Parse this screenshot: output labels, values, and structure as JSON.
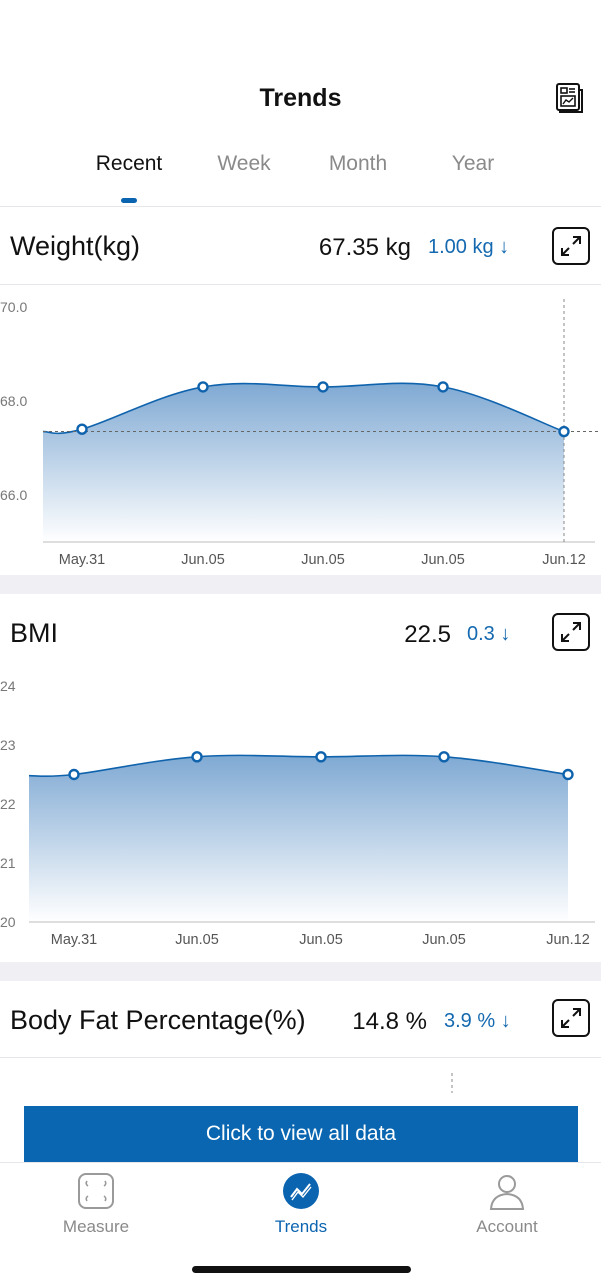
{
  "header": {
    "title": "Trends",
    "report_icon": "report-icon"
  },
  "tabs": [
    {
      "label": "Recent",
      "active": true
    },
    {
      "label": "Week",
      "active": false
    },
    {
      "label": "Month",
      "active": false
    },
    {
      "label": "Year",
      "active": false
    }
  ],
  "cards": {
    "weight": {
      "title": "Weight(kg)",
      "value": "67.35 kg",
      "delta": "1.00 kg ↓"
    },
    "bmi": {
      "title": "BMI",
      "value": "22.5",
      "delta": "0.3 ↓"
    },
    "body_fat": {
      "title": "Body Fat Percentage(%)",
      "value": "14.8 %",
      "delta": "3.9 % ↓"
    }
  },
  "chart_data": [
    {
      "type": "area",
      "name": "Weight(kg)",
      "categories": [
        "May.31",
        "Jun.05",
        "Jun.05",
        "Jun.05",
        "Jun.12"
      ],
      "values": [
        67.4,
        68.3,
        68.3,
        68.3,
        67.35
      ],
      "ylim": [
        65.0,
        70.0
      ],
      "yticks": [
        "70.0",
        "68.0",
        "66.0"
      ],
      "ytick_values": [
        70.0,
        68.0,
        66.0
      ],
      "reference_line": 67.35,
      "colors": {
        "line": "#0f63ad",
        "fill_top": "#7fa9d3",
        "fill_bottom": "#ffffff"
      }
    },
    {
      "type": "area",
      "name": "BMI",
      "categories": [
        "May.31",
        "Jun.05",
        "Jun.05",
        "Jun.05",
        "Jun.12"
      ],
      "values": [
        22.5,
        22.8,
        22.8,
        22.8,
        22.5
      ],
      "ylim": [
        20,
        24
      ],
      "yticks": [
        "24",
        "23",
        "22",
        "21",
        "20"
      ],
      "ytick_values": [
        24,
        23,
        22,
        21,
        20
      ],
      "colors": {
        "line": "#0f63ad",
        "fill_top": "#7fa9d3",
        "fill_bottom": "#ffffff"
      }
    }
  ],
  "cta": {
    "label": "Click to view all data"
  },
  "tabbar": [
    {
      "label": "Measure",
      "icon": "scale-icon",
      "active": false
    },
    {
      "label": "Trends",
      "icon": "trends-icon",
      "active": true
    },
    {
      "label": "Account",
      "icon": "person-icon",
      "active": false
    }
  ]
}
